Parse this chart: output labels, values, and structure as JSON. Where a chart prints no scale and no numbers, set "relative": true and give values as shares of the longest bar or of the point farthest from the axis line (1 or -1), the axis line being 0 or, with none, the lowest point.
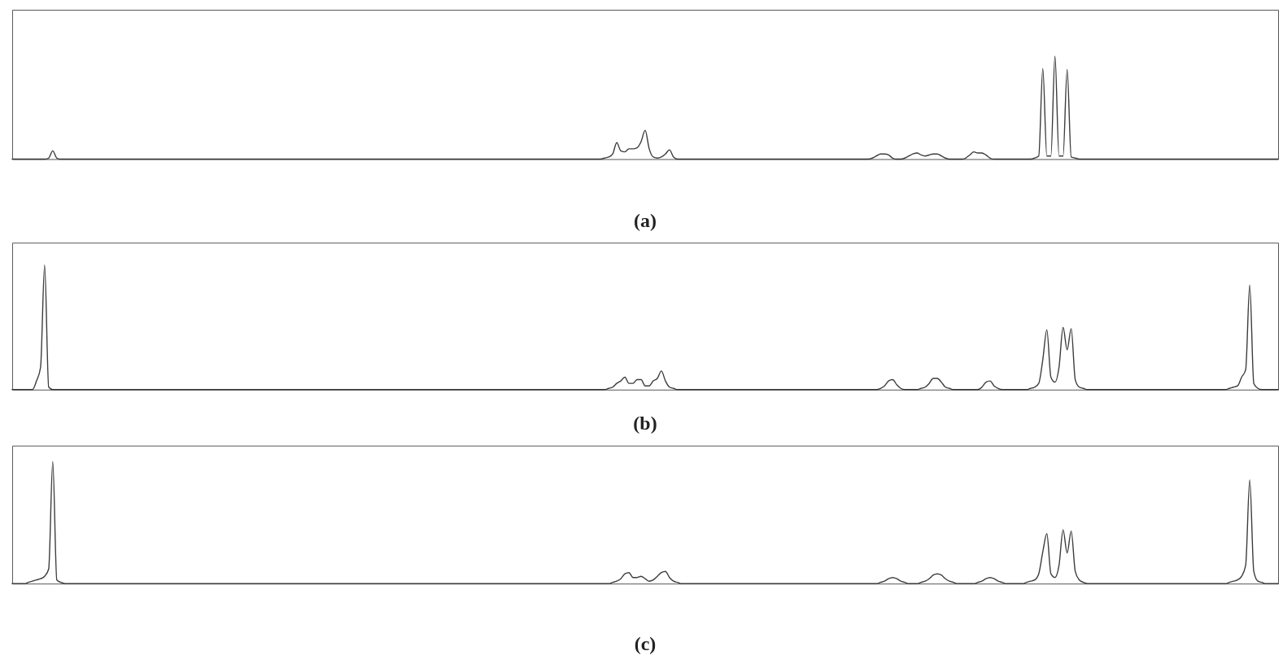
{
  "chart_data": [
    {
      "type": "line",
      "title": "(a)",
      "relative": true,
      "categories": [
        null,
        null,
        null,
        null,
        null,
        null,
        null,
        null,
        null,
        null,
        null,
        null,
        null,
        null,
        null,
        null,
        null,
        null,
        null,
        null,
        null,
        null,
        null,
        null,
        null,
        null,
        null,
        null,
        null,
        null,
        null,
        null,
        null,
        null,
        null,
        null,
        null,
        null,
        null,
        null,
        null,
        null,
        null,
        null,
        null,
        null,
        null,
        null,
        null,
        null,
        null,
        null,
        null,
        null,
        null,
        null,
        null,
        null,
        null,
        null,
        null,
        null,
        null,
        null,
        null,
        null,
        null,
        null,
        null,
        null,
        null,
        null,
        null,
        null,
        null,
        null,
        null,
        null,
        null,
        null,
        null,
        null,
        null,
        null,
        null,
        null,
        null,
        null,
        null,
        null,
        null,
        null,
        null,
        null,
        null,
        null,
        null,
        null,
        null,
        null,
        null,
        null,
        null,
        null,
        null,
        null,
        null,
        null,
        null,
        null,
        null,
        null,
        null,
        null,
        null,
        null,
        null,
        null,
        null,
        null,
        null,
        null,
        null,
        null,
        null,
        null,
        null,
        null,
        null,
        null,
        null,
        null,
        null,
        null,
        null,
        null,
        null,
        null,
        null,
        null,
        null,
        null,
        null,
        null,
        null,
        null,
        null,
        null,
        null,
        null,
        null,
        null,
        null,
        null,
        null,
        null,
        null,
        null,
        null,
        null,
        null,
        null,
        null,
        null,
        null,
        null,
        null,
        null,
        null,
        null,
        null,
        null,
        null,
        null,
        null,
        null,
        null,
        null,
        null,
        null,
        null,
        null,
        null,
        null,
        null,
        null,
        null,
        null,
        null,
        null,
        null,
        null,
        null,
        null,
        null,
        null,
        null,
        null,
        null,
        null,
        null,
        null,
        null,
        null,
        null,
        null,
        null,
        null,
        null,
        null,
        null,
        null,
        null,
        null,
        null,
        null,
        null,
        null,
        null,
        null,
        null,
        null,
        null,
        null,
        null,
        null,
        null,
        null,
        null,
        null,
        null,
        null,
        null,
        null,
        null,
        null,
        null,
        null,
        null,
        null,
        null,
        null,
        null,
        null,
        null,
        null,
        null,
        null,
        null,
        null,
        null,
        null,
        null,
        null,
        null,
        null,
        null,
        null,
        null,
        null,
        null,
        null,
        null,
        null,
        null,
        null,
        null,
        null,
        null,
        null,
        null,
        null,
        null,
        null,
        null,
        null,
        null,
        null,
        null,
        null,
        null,
        null,
        null,
        null,
        null,
        null,
        null,
        null,
        null,
        null,
        null,
        null,
        null,
        null,
        null,
        null,
        null,
        null,
        null,
        null,
        null,
        null,
        null,
        null,
        null,
        null,
        null,
        null,
        null,
        null,
        null,
        null,
        null
      ],
      "series": [
        {
          "color": "#3c3c3c",
          "values": [
            0,
            0,
            0,
            0,
            0,
            0,
            0,
            0,
            0,
            0.01,
            0.08,
            0.01,
            0,
            0,
            0,
            0,
            0,
            0,
            0,
            0,
            0,
            0,
            0,
            0,
            0,
            0,
            0,
            0,
            0,
            0,
            0,
            0,
            0,
            0,
            0,
            0,
            0,
            0,
            0,
            0,
            0,
            0,
            0,
            0,
            0,
            0,
            0,
            0,
            0,
            0,
            0,
            0,
            0,
            0,
            0,
            0,
            0,
            0,
            0,
            0,
            0,
            0,
            0,
            0,
            0,
            0,
            0,
            0,
            0,
            0,
            0,
            0,
            0,
            0,
            0,
            0,
            0,
            0,
            0,
            0,
            0,
            0,
            0,
            0,
            0,
            0,
            0,
            0,
            0,
            0,
            0,
            0,
            0,
            0,
            0,
            0,
            0,
            0,
            0,
            0,
            0,
            0,
            0,
            0,
            0,
            0,
            0,
            0,
            0,
            0,
            0,
            0,
            0,
            0,
            0,
            0,
            0,
            0,
            0,
            0,
            0,
            0,
            0,
            0,
            0,
            0,
            0,
            0,
            0,
            0,
            0,
            0,
            0,
            0,
            0,
            0,
            0,
            0,
            0,
            0,
            0,
            0,
            0,
            0,
            0,
            0,
            0.01,
            0.02,
            0.05,
            0.16,
            0.08,
            0.07,
            0.1,
            0.1,
            0.11,
            0.17,
            0.28,
            0.1,
            0.02,
            0.01,
            0.02,
            0.05,
            0.09,
            0.02,
            0,
            0,
            0,
            0,
            0,
            0,
            0,
            0,
            0,
            0,
            0,
            0,
            0,
            0,
            0,
            0,
            0,
            0,
            0,
            0,
            0,
            0,
            0,
            0,
            0,
            0,
            0,
            0,
            0,
            0,
            0,
            0,
            0,
            0,
            0,
            0,
            0,
            0,
            0,
            0,
            0,
            0,
            0,
            0,
            0,
            0,
            0,
            0,
            0.01,
            0.03,
            0.05,
            0.05,
            0.04,
            0.01,
            0,
            0,
            0.01,
            0.03,
            0.05,
            0.06,
            0.04,
            0.03,
            0.04,
            0.05,
            0.05,
            0.03,
            0.01,
            0,
            0,
            0,
            0,
            0.01,
            0.04,
            0.07,
            0.06,
            0.06,
            0.04,
            0.01,
            0,
            0,
            0,
            0,
            0,
            0,
            0,
            0,
            0,
            0,
            0.01,
            0.03,
            0.88,
            0.03,
            0.03,
            1,
            0.03,
            0.03,
            0.87,
            0.02,
            0.01,
            0,
            0,
            0,
            0,
            0,
            0,
            0,
            0,
            0,
            0,
            0,
            0,
            0,
            0,
            0,
            0,
            0,
            0,
            0,
            0,
            0,
            0,
            0,
            0,
            0,
            0,
            0,
            0,
            0,
            0,
            0,
            0,
            0,
            0,
            0,
            0,
            0,
            0,
            0,
            0,
            0,
            0,
            0,
            0,
            0,
            0,
            0,
            0,
            0,
            0
          ]
        }
      ]
    },
    {
      "type": "line",
      "title": "(b)",
      "relative": true,
      "categories": [
        null,
        null,
        null,
        null,
        null,
        null,
        null,
        null,
        null,
        null,
        null,
        null,
        null,
        null,
        null,
        null,
        null,
        null,
        null,
        null,
        null,
        null,
        null,
        null,
        null,
        null,
        null,
        null,
        null,
        null,
        null,
        null,
        null,
        null,
        null,
        null,
        null,
        null,
        null,
        null,
        null,
        null,
        null,
        null,
        null,
        null,
        null,
        null,
        null,
        null,
        null,
        null,
        null,
        null,
        null,
        null,
        null,
        null,
        null,
        null,
        null,
        null,
        null,
        null,
        null,
        null,
        null,
        null,
        null,
        null,
        null,
        null,
        null,
        null,
        null,
        null,
        null,
        null,
        null,
        null,
        null,
        null,
        null,
        null,
        null,
        null,
        null,
        null,
        null,
        null,
        null,
        null,
        null,
        null,
        null,
        null,
        null,
        null,
        null,
        null,
        null,
        null,
        null,
        null,
        null,
        null,
        null,
        null,
        null,
        null,
        null,
        null,
        null,
        null,
        null,
        null,
        null,
        null,
        null,
        null,
        null,
        null,
        null,
        null,
        null,
        null,
        null,
        null,
        null,
        null,
        null,
        null,
        null,
        null,
        null,
        null,
        null,
        null,
        null,
        null,
        null,
        null,
        null,
        null,
        null,
        null,
        null,
        null,
        null,
        null,
        null,
        null,
        null,
        null,
        null,
        null,
        null,
        null,
        null,
        null,
        null,
        null,
        null,
        null,
        null,
        null,
        null,
        null,
        null,
        null,
        null,
        null,
        null,
        null,
        null,
        null,
        null,
        null,
        null,
        null,
        null,
        null,
        null,
        null,
        null,
        null,
        null,
        null,
        null,
        null,
        null,
        null,
        null,
        null,
        null,
        null,
        null,
        null,
        null,
        null,
        null,
        null,
        null,
        null,
        null,
        null,
        null,
        null,
        null,
        null,
        null,
        null,
        null,
        null,
        null,
        null,
        null,
        null,
        null,
        null,
        null,
        null,
        null,
        null,
        null,
        null,
        null,
        null,
        null,
        null,
        null,
        null,
        null,
        null,
        null,
        null,
        null,
        null,
        null,
        null,
        null,
        null,
        null,
        null,
        null,
        null,
        null,
        null,
        null,
        null,
        null,
        null,
        null,
        null,
        null,
        null,
        null,
        null,
        null,
        null,
        null,
        null,
        null,
        null,
        null,
        null,
        null,
        null,
        null,
        null,
        null,
        null,
        null,
        null,
        null,
        null,
        null,
        null,
        null,
        null,
        null,
        null,
        null,
        null,
        null,
        null,
        null,
        null,
        null,
        null,
        null,
        null,
        null,
        null,
        null,
        null,
        null,
        null,
        null,
        null,
        null,
        null,
        null,
        null,
        null,
        null,
        null,
        null,
        null,
        null,
        null,
        null,
        null
      ],
      "series": [
        {
          "color": "#3c3c3c",
          "values": [
            0,
            0,
            0,
            0,
            0,
            0,
            0.07,
            0.18,
            1,
            0.02,
            0,
            0,
            0,
            0,
            0,
            0,
            0,
            0,
            0,
            0,
            0,
            0,
            0,
            0,
            0,
            0,
            0,
            0,
            0,
            0,
            0,
            0,
            0,
            0,
            0,
            0,
            0,
            0,
            0,
            0,
            0,
            0,
            0,
            0,
            0,
            0,
            0,
            0,
            0,
            0,
            0,
            0,
            0,
            0,
            0,
            0,
            0,
            0,
            0,
            0,
            0,
            0,
            0,
            0,
            0,
            0,
            0,
            0,
            0,
            0,
            0,
            0,
            0,
            0,
            0,
            0,
            0,
            0,
            0,
            0,
            0,
            0,
            0,
            0,
            0,
            0,
            0,
            0,
            0,
            0,
            0,
            0,
            0,
            0,
            0,
            0,
            0,
            0,
            0,
            0,
            0,
            0,
            0,
            0,
            0,
            0,
            0,
            0,
            0,
            0,
            0,
            0,
            0,
            0,
            0,
            0,
            0,
            0,
            0,
            0,
            0,
            0,
            0,
            0,
            0,
            0,
            0,
            0,
            0,
            0,
            0,
            0,
            0,
            0,
            0,
            0,
            0,
            0,
            0,
            0,
            0,
            0,
            0,
            0,
            0,
            0,
            0,
            0.01,
            0.02,
            0.05,
            0.07,
            0.1,
            0.05,
            0.05,
            0.08,
            0.08,
            0.03,
            0.03,
            0.07,
            0.09,
            0.15,
            0.07,
            0.02,
            0.01,
            0,
            0,
            0,
            0,
            0,
            0,
            0,
            0,
            0,
            0,
            0,
            0,
            0,
            0,
            0,
            0,
            0,
            0,
            0,
            0,
            0,
            0,
            0,
            0,
            0,
            0,
            0,
            0,
            0,
            0,
            0,
            0,
            0,
            0,
            0,
            0,
            0,
            0,
            0,
            0,
            0,
            0,
            0,
            0,
            0,
            0,
            0,
            0,
            0,
            0,
            0.01,
            0.03,
            0.07,
            0.08,
            0.04,
            0.01,
            0,
            0,
            0,
            0,
            0.01,
            0.02,
            0.05,
            0.09,
            0.09,
            0.06,
            0.02,
            0.01,
            0,
            0,
            0,
            0,
            0,
            0,
            0,
            0.02,
            0.06,
            0.07,
            0.03,
            0.01,
            0,
            0,
            0,
            0,
            0,
            0,
            0,
            0.01,
            0.02,
            0.05,
            0.24,
            0.48,
            0.1,
            0.06,
            0.18,
            0.5,
            0.32,
            0.49,
            0.08,
            0.02,
            0.01,
            0,
            0,
            0,
            0,
            0,
            0,
            0,
            0,
            0,
            0,
            0,
            0,
            0,
            0,
            0,
            0,
            0,
            0,
            0,
            0,
            0,
            0,
            0,
            0,
            0,
            0,
            0,
            0,
            0,
            0,
            0,
            0,
            0,
            0,
            0,
            0.01,
            0.02,
            0.03,
            0.1,
            0.16,
            0.84,
            0.05,
            0.01,
            0,
            0,
            0,
            0,
            0
          ]
        }
      ]
    },
    {
      "type": "line",
      "title": "(c)",
      "relative": true,
      "categories": [
        null,
        null,
        null,
        null,
        null,
        null,
        null,
        null,
        null,
        null,
        null,
        null,
        null,
        null,
        null,
        null,
        null,
        null,
        null,
        null,
        null,
        null,
        null,
        null,
        null,
        null,
        null,
        null,
        null,
        null,
        null,
        null,
        null,
        null,
        null,
        null,
        null,
        null,
        null,
        null,
        null,
        null,
        null,
        null,
        null,
        null,
        null,
        null,
        null,
        null,
        null,
        null,
        null,
        null,
        null,
        null,
        null,
        null,
        null,
        null,
        null,
        null,
        null,
        null,
        null,
        null,
        null,
        null,
        null,
        null,
        null,
        null,
        null,
        null,
        null,
        null,
        null,
        null,
        null,
        null,
        null,
        null,
        null,
        null,
        null,
        null,
        null,
        null,
        null,
        null,
        null,
        null,
        null,
        null,
        null,
        null,
        null,
        null,
        null,
        null,
        null,
        null,
        null,
        null,
        null,
        null,
        null,
        null,
        null,
        null,
        null,
        null,
        null,
        null,
        null,
        null,
        null,
        null,
        null,
        null,
        null,
        null,
        null,
        null,
        null,
        null,
        null,
        null,
        null,
        null,
        null,
        null,
        null,
        null,
        null,
        null,
        null,
        null,
        null,
        null,
        null,
        null,
        null,
        null,
        null,
        null,
        null,
        null,
        null,
        null,
        null,
        null,
        null,
        null,
        null,
        null,
        null,
        null,
        null,
        null,
        null,
        null,
        null,
        null,
        null,
        null,
        null,
        null,
        null,
        null,
        null,
        null,
        null,
        null,
        null,
        null,
        null,
        null,
        null,
        null,
        null,
        null,
        null,
        null,
        null,
        null,
        null,
        null,
        null,
        null,
        null,
        null,
        null,
        null,
        null,
        null,
        null,
        null,
        null,
        null,
        null,
        null,
        null,
        null,
        null,
        null,
        null,
        null,
        null,
        null,
        null,
        null,
        null,
        null,
        null,
        null,
        null,
        null,
        null,
        null,
        null,
        null,
        null,
        null,
        null,
        null,
        null,
        null,
        null,
        null,
        null,
        null,
        null,
        null,
        null,
        null,
        null,
        null,
        null,
        null,
        null,
        null,
        null,
        null,
        null,
        null,
        null,
        null,
        null,
        null,
        null,
        null,
        null,
        null,
        null,
        null,
        null,
        null,
        null,
        null,
        null,
        null,
        null,
        null,
        null,
        null,
        null,
        null,
        null,
        null,
        null,
        null,
        null,
        null,
        null,
        null,
        null,
        null,
        null,
        null,
        null,
        null,
        null,
        null,
        null,
        null,
        null,
        null,
        null,
        null,
        null,
        null,
        null,
        null,
        null,
        null,
        null,
        null,
        null,
        null,
        null,
        null,
        null,
        null,
        null,
        null,
        null,
        null,
        null,
        null,
        null,
        null,
        null
      ],
      "series": [
        {
          "color": "#3c3c3c",
          "values": [
            0,
            0,
            0,
            0,
            0.01,
            0.02,
            0.03,
            0.04,
            0.06,
            0.12,
            1,
            0.03,
            0.01,
            0,
            0,
            0,
            0,
            0,
            0,
            0,
            0,
            0,
            0,
            0,
            0,
            0,
            0,
            0,
            0,
            0,
            0,
            0,
            0,
            0,
            0,
            0,
            0,
            0,
            0,
            0,
            0,
            0,
            0,
            0,
            0,
            0,
            0,
            0,
            0,
            0,
            0,
            0,
            0,
            0,
            0,
            0,
            0,
            0,
            0,
            0,
            0,
            0,
            0,
            0,
            0,
            0,
            0,
            0,
            0,
            0,
            0,
            0,
            0,
            0,
            0,
            0,
            0,
            0,
            0,
            0,
            0,
            0,
            0,
            0,
            0,
            0,
            0,
            0,
            0,
            0,
            0,
            0,
            0,
            0,
            0,
            0,
            0,
            0,
            0,
            0,
            0,
            0,
            0,
            0,
            0,
            0,
            0,
            0,
            0,
            0,
            0,
            0,
            0,
            0,
            0,
            0,
            0,
            0,
            0,
            0,
            0,
            0,
            0,
            0,
            0,
            0,
            0,
            0,
            0,
            0,
            0,
            0,
            0,
            0,
            0,
            0,
            0,
            0,
            0,
            0,
            0,
            0,
            0,
            0,
            0,
            0,
            0,
            0,
            0.01,
            0.02,
            0.04,
            0.08,
            0.09,
            0.05,
            0.05,
            0.06,
            0.04,
            0.02,
            0.03,
            0.06,
            0.09,
            0.1,
            0.05,
            0.02,
            0.01,
            0,
            0,
            0,
            0,
            0,
            0,
            0,
            0,
            0,
            0,
            0,
            0,
            0,
            0,
            0,
            0,
            0,
            0,
            0,
            0,
            0,
            0,
            0,
            0,
            0,
            0,
            0,
            0,
            0,
            0,
            0,
            0,
            0,
            0,
            0,
            0,
            0,
            0,
            0,
            0,
            0,
            0,
            0,
            0,
            0,
            0,
            0,
            0,
            0,
            0.01,
            0.02,
            0.04,
            0.05,
            0.04,
            0.02,
            0.01,
            0,
            0,
            0,
            0.01,
            0.02,
            0.04,
            0.07,
            0.08,
            0.07,
            0.04,
            0.02,
            0.01,
            0,
            0,
            0,
            0,
            0,
            0.01,
            0.02,
            0.04,
            0.05,
            0.04,
            0.02,
            0.01,
            0,
            0,
            0,
            0,
            0,
            0.01,
            0.02,
            0.03,
            0.08,
            0.26,
            0.41,
            0.08,
            0.05,
            0.15,
            0.44,
            0.25,
            0.43,
            0.1,
            0.03,
            0.01,
            0,
            0,
            0,
            0,
            0,
            0,
            0,
            0,
            0,
            0,
            0,
            0,
            0,
            0,
            0,
            0,
            0,
            0,
            0,
            0,
            0,
            0,
            0,
            0,
            0,
            0,
            0,
            0,
            0,
            0,
            0,
            0,
            0,
            0,
            0,
            0.01,
            0.02,
            0.03,
            0.06,
            0.15,
            0.85,
            0.1,
            0.02,
            0.01,
            0,
            0,
            0,
            0
          ]
        }
      ]
    }
  ]
}
